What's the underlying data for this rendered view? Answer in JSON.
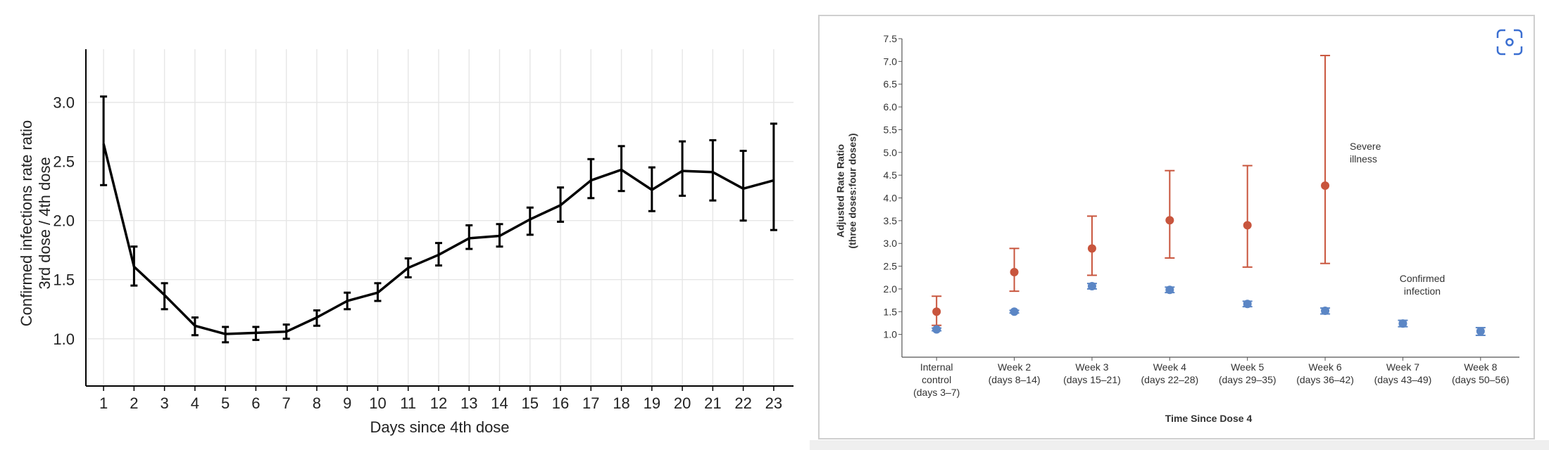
{
  "chart_data": [
    {
      "type": "line",
      "color": "#000000",
      "grid": true,
      "x_label": "Days since 4th dose",
      "y_label": "Confirmed infections rate ratio\n3rd dose / 4th dose",
      "x": [
        1,
        2,
        3,
        4,
        5,
        6,
        7,
        8,
        9,
        10,
        11,
        12,
        13,
        14,
        15,
        16,
        17,
        18,
        19,
        20,
        21,
        22,
        23
      ],
      "values": [
        2.65,
        1.61,
        1.37,
        1.11,
        1.04,
        1.05,
        1.06,
        1.18,
        1.32,
        1.39,
        1.6,
        1.71,
        1.85,
        1.87,
        2.01,
        2.13,
        2.34,
        2.43,
        2.26,
        2.42,
        2.41,
        2.27,
        2.34
      ],
      "lower": [
        2.3,
        1.45,
        1.25,
        1.03,
        0.97,
        0.99,
        1.0,
        1.11,
        1.25,
        1.32,
        1.52,
        1.62,
        1.76,
        1.78,
        1.88,
        1.99,
        2.19,
        2.25,
        2.08,
        2.21,
        2.17,
        2.0,
        1.92
      ],
      "upper": [
        3.05,
        1.78,
        1.47,
        1.18,
        1.1,
        1.1,
        1.12,
        1.24,
        1.39,
        1.47,
        1.68,
        1.81,
        1.96,
        1.97,
        2.11,
        2.28,
        2.52,
        2.63,
        2.45,
        2.67,
        2.68,
        2.59,
        2.82
      ],
      "xlim": [
        0.42,
        23.65
      ],
      "xticks": [
        1,
        2,
        3,
        4,
        5,
        6,
        7,
        8,
        9,
        10,
        11,
        12,
        13,
        14,
        15,
        16,
        17,
        18,
        19,
        20,
        21,
        22,
        23
      ],
      "ylim": [
        0.6,
        3.45
      ],
      "yticks": [
        {
          "value": 1,
          "label": "1.0"
        },
        1.5,
        {
          "value": 2,
          "label": "2.0"
        },
        2.5,
        {
          "value": 3,
          "label": "3.0"
        }
      ]
    },
    {
      "type": "scatter",
      "grid": false,
      "x_label": "Time Since Dose 4",
      "y_label": "Adjusted Rate Ratio\n(three doses:four doses)",
      "categories": [
        "Internal\ncontrol\n(days 3–7)",
        "Week 2\n(days 8–14)",
        "Week 3\n(days 15–21)",
        "Week 4\n(days 22–28)",
        "Week 5\n(days 29–35)",
        "Week 6\n(days 36–42)",
        "Week 7\n(days 43–49)",
        "Week 8\n(days 50–56)"
      ],
      "series": [
        {
          "name": "Severe\nillness",
          "color": "#c8553d",
          "values": [
            1.5,
            2.37,
            2.89,
            3.51,
            3.4,
            4.27,
            null,
            null
          ],
          "lower": [
            1.2,
            1.95,
            2.3,
            2.68,
            2.48,
            2.56,
            null,
            null
          ],
          "upper": [
            1.84,
            2.89,
            3.6,
            4.6,
            4.71,
            7.13,
            null,
            null
          ]
        },
        {
          "name": "Confirmed\ninfection",
          "color": "#5b86c5",
          "values": [
            1.11,
            1.5,
            2.06,
            1.98,
            1.67,
            1.52,
            1.24,
            1.07
          ],
          "lower": [
            1.08,
            1.47,
            2.0,
            1.92,
            1.61,
            1.45,
            1.17,
            0.98
          ],
          "upper": [
            1.14,
            1.53,
            2.12,
            2.04,
            1.73,
            1.58,
            1.31,
            1.15
          ]
        }
      ],
      "ylim": [
        0.5,
        7.5
      ],
      "yticks": [
        {
          "value": 1,
          "label": "1.0"
        },
        1.5,
        {
          "value": 2,
          "label": "2.0"
        },
        2.5,
        {
          "value": 3,
          "label": "3.0"
        },
        3.5,
        {
          "value": 4,
          "label": "4.0"
        },
        4.5,
        {
          "value": 5,
          "label": "5.0"
        },
        5.5,
        {
          "value": 6,
          "label": "6.0"
        },
        6.5,
        {
          "value": 7,
          "label": "7.0"
        },
        7.5
      ]
    }
  ]
}
